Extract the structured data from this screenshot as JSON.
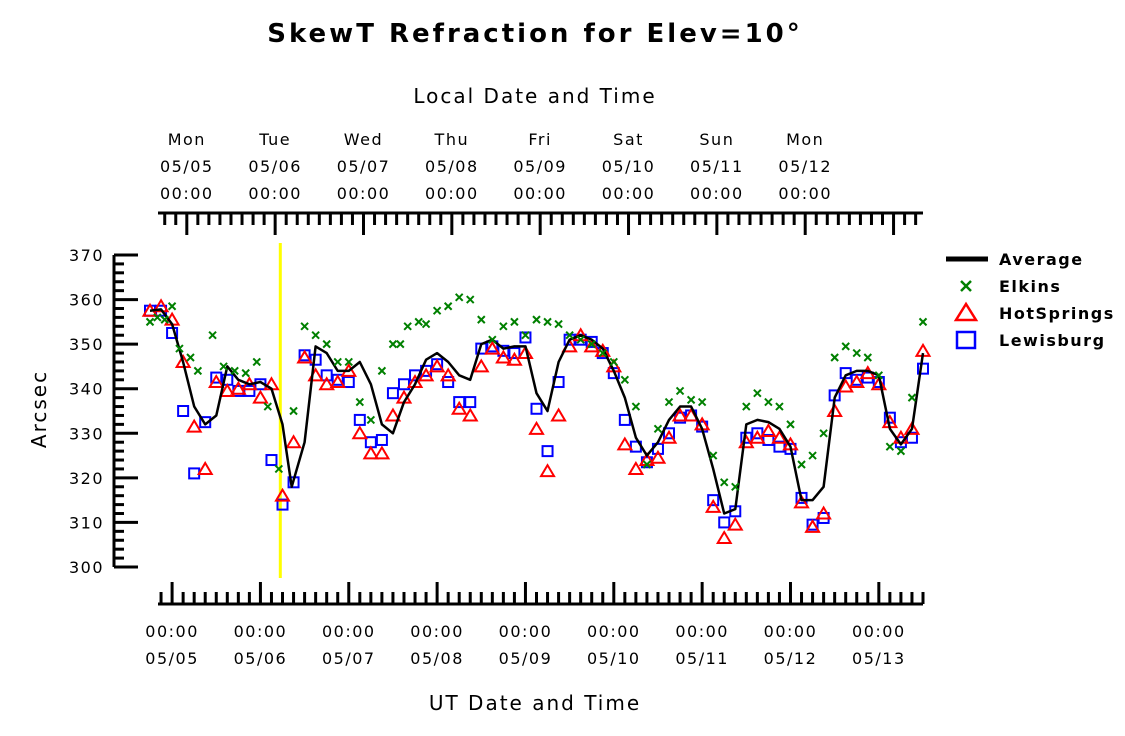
{
  "chart_data": {
    "type": "scatter",
    "title": "SkewT Refraction for Elev=10°",
    "ylabel": "Arcsec",
    "xlabel": "UT Date and Time",
    "top_axis_label": "Local Date and Time",
    "ylim": [
      300,
      370
    ],
    "yticks": [
      300,
      310,
      320,
      330,
      340,
      350,
      360,
      370
    ],
    "x_unit": "hours since 05/04 18:00 UT",
    "xlim": [
      0,
      210
    ],
    "bottom_ticks": [
      {
        "time": "00:00",
        "date": "05/05"
      },
      {
        "time": "00:00",
        "date": "05/06"
      },
      {
        "time": "00:00",
        "date": "05/07"
      },
      {
        "time": "00:00",
        "date": "05/08"
      },
      {
        "time": "00:00",
        "date": "05/09"
      },
      {
        "time": "00:00",
        "date": "05/10"
      },
      {
        "time": "00:00",
        "date": "05/11"
      },
      {
        "time": "00:00",
        "date": "05/12"
      },
      {
        "time": "00:00",
        "date": "05/13"
      }
    ],
    "top_ticks": [
      {
        "day": "Mon",
        "date": "05/05",
        "time": "00:00"
      },
      {
        "day": "Tue",
        "date": "05/06",
        "time": "00:00"
      },
      {
        "day": "Wed",
        "date": "05/07",
        "time": "00:00"
      },
      {
        "day": "Thu",
        "date": "05/08",
        "time": "00:00"
      },
      {
        "day": "Fri",
        "date": "05/09",
        "time": "00:00"
      },
      {
        "day": "Sat",
        "date": "05/10",
        "time": "00:00"
      },
      {
        "day": "Sun",
        "date": "05/11",
        "time": "00:00"
      },
      {
        "day": "Mon",
        "date": "05/12",
        "time": "00:00"
      }
    ],
    "marker_line": {
      "x": 35.4,
      "color": "#ffff00"
    },
    "legend_position": "right",
    "series": [
      {
        "name": "Average",
        "kind": "line",
        "color": "#000000",
        "points": [
          [
            0,
            357.5
          ],
          [
            3,
            357.8
          ],
          [
            6,
            354.5
          ],
          [
            9,
            346
          ],
          [
            12,
            336
          ],
          [
            15,
            332
          ],
          [
            18,
            334
          ],
          [
            21,
            345
          ],
          [
            24,
            342
          ],
          [
            27,
            341
          ],
          [
            30,
            341.5
          ],
          [
            33,
            340
          ],
          [
            36,
            332
          ],
          [
            38.5,
            318
          ],
          [
            42,
            328
          ],
          [
            45,
            349.5
          ],
          [
            48,
            348
          ],
          [
            51,
            344
          ],
          [
            54,
            344
          ],
          [
            57,
            346
          ],
          [
            60,
            341
          ],
          [
            63,
            332
          ],
          [
            66,
            330
          ],
          [
            69,
            337
          ],
          [
            72,
            341
          ],
          [
            75,
            346.5
          ],
          [
            78,
            348
          ],
          [
            81,
            346
          ],
          [
            84,
            343
          ],
          [
            87,
            342
          ],
          [
            90,
            350
          ],
          [
            93,
            351
          ],
          [
            96,
            349
          ],
          [
            99,
            349.5
          ],
          [
            102,
            349.5
          ],
          [
            105,
            339
          ],
          [
            108,
            335
          ],
          [
            111,
            346
          ],
          [
            114,
            351
          ],
          [
            117,
            352
          ],
          [
            120,
            351
          ],
          [
            123,
            349
          ],
          [
            126,
            344
          ],
          [
            129,
            338
          ],
          [
            132,
            329
          ],
          [
            135,
            325
          ],
          [
            138,
            328
          ],
          [
            141,
            333
          ],
          [
            144,
            336
          ],
          [
            147,
            336
          ],
          [
            150,
            331
          ],
          [
            153,
            322
          ],
          [
            156,
            312
          ],
          [
            159,
            313
          ],
          [
            162,
            332
          ],
          [
            165,
            333
          ],
          [
            168,
            332.5
          ],
          [
            171,
            331
          ],
          [
            174,
            327
          ],
          [
            177,
            315
          ],
          [
            180,
            315
          ],
          [
            183,
            318
          ],
          [
            186,
            338
          ],
          [
            189,
            343
          ],
          [
            192,
            344
          ],
          [
            195,
            344
          ],
          [
            198,
            343
          ],
          [
            201,
            331
          ],
          [
            204,
            327.5
          ],
          [
            207,
            331
          ],
          [
            210,
            348
          ]
        ]
      },
      {
        "name": "Elkins",
        "kind": "marker",
        "marker": "x",
        "color": "#008000",
        "points": [
          [
            0,
            355
          ],
          [
            2,
            356
          ],
          [
            4,
            355.5
          ],
          [
            6,
            358.5
          ],
          [
            8,
            349
          ],
          [
            11,
            347
          ],
          [
            13,
            344
          ],
          [
            17,
            352
          ],
          [
            20,
            345
          ],
          [
            23,
            344
          ],
          [
            26,
            343.5
          ],
          [
            29,
            346
          ],
          [
            32,
            336
          ],
          [
            35,
            322
          ],
          [
            39,
            335
          ],
          [
            42,
            354
          ],
          [
            45,
            352
          ],
          [
            48,
            350
          ],
          [
            51,
            346
          ],
          [
            54,
            346
          ],
          [
            57,
            337
          ],
          [
            60,
            333
          ],
          [
            63,
            344
          ],
          [
            66,
            350
          ],
          [
            68,
            350
          ],
          [
            70,
            354
          ],
          [
            73,
            355
          ],
          [
            75,
            354.5
          ],
          [
            78,
            357.5
          ],
          [
            81,
            358.5
          ],
          [
            84,
            360.5
          ],
          [
            87,
            360
          ],
          [
            90,
            355.5
          ],
          [
            93,
            351
          ],
          [
            96,
            354
          ],
          [
            99,
            355
          ],
          [
            102,
            352
          ],
          [
            105,
            355.5
          ],
          [
            108,
            355
          ],
          [
            111,
            354.5
          ],
          [
            114,
            352
          ],
          [
            117,
            351
          ],
          [
            120,
            350
          ],
          [
            123,
            348
          ],
          [
            126,
            346
          ],
          [
            129,
            342
          ],
          [
            132,
            336
          ],
          [
            135,
            323
          ],
          [
            138,
            331
          ],
          [
            141,
            337
          ],
          [
            144,
            339.5
          ],
          [
            147,
            337.5
          ],
          [
            150,
            337
          ],
          [
            153,
            325
          ],
          [
            156,
            319
          ],
          [
            159,
            318
          ],
          [
            162,
            336
          ],
          [
            165,
            339
          ],
          [
            168,
            337
          ],
          [
            171,
            336
          ],
          [
            174,
            332
          ],
          [
            177,
            323
          ],
          [
            180,
            325
          ],
          [
            183,
            330
          ],
          [
            186,
            347
          ],
          [
            189,
            349.5
          ],
          [
            192,
            348
          ],
          [
            195,
            347
          ],
          [
            198,
            343
          ],
          [
            201,
            327
          ],
          [
            204,
            326
          ],
          [
            207,
            338
          ],
          [
            210,
            355
          ]
        ]
      },
      {
        "name": "HotSprings",
        "kind": "marker",
        "marker": "triangle",
        "color": "#ff0000",
        "points": [
          [
            0,
            357.5
          ],
          [
            3,
            358.5
          ],
          [
            6,
            355.5
          ],
          [
            9,
            346
          ],
          [
            12,
            331.5
          ],
          [
            15,
            322
          ],
          [
            18,
            341.5
          ],
          [
            21,
            339.5
          ],
          [
            24,
            340
          ],
          [
            27,
            341
          ],
          [
            30,
            338
          ],
          [
            33,
            341
          ],
          [
            36,
            316
          ],
          [
            39,
            328
          ],
          [
            42,
            347
          ],
          [
            45,
            343
          ],
          [
            48,
            341
          ],
          [
            51,
            341.5
          ],
          [
            54,
            344
          ],
          [
            57,
            330
          ],
          [
            60,
            325.5
          ],
          [
            63,
            325.5
          ],
          [
            66,
            334
          ],
          [
            69,
            338
          ],
          [
            72,
            341.5
          ],
          [
            75,
            343
          ],
          [
            78,
            345
          ],
          [
            81,
            343
          ],
          [
            84,
            335.5
          ],
          [
            87,
            334
          ],
          [
            90,
            345
          ],
          [
            93,
            349
          ],
          [
            96,
            347
          ],
          [
            99,
            346.5
          ],
          [
            102,
            348
          ],
          [
            105,
            331
          ],
          [
            108,
            321.5
          ],
          [
            111,
            334
          ],
          [
            114,
            349.5
          ],
          [
            117,
            352
          ],
          [
            120,
            349.5
          ],
          [
            123,
            348.5
          ],
          [
            126,
            345
          ],
          [
            129,
            327.5
          ],
          [
            132,
            322
          ],
          [
            135,
            324
          ],
          [
            138,
            324.5
          ],
          [
            141,
            329
          ],
          [
            144,
            334
          ],
          [
            147,
            334
          ],
          [
            150,
            332
          ],
          [
            153,
            313.5
          ],
          [
            156,
            306.5
          ],
          [
            159,
            309.5
          ],
          [
            162,
            328
          ],
          [
            165,
            329
          ],
          [
            168,
            330.5
          ],
          [
            171,
            329
          ],
          [
            174,
            327.5
          ],
          [
            177,
            314.5
          ],
          [
            180,
            309
          ],
          [
            183,
            312
          ],
          [
            186,
            335
          ],
          [
            189,
            340.5
          ],
          [
            192,
            341.5
          ],
          [
            195,
            343.5
          ],
          [
            198,
            341
          ],
          [
            201,
            332.5
          ],
          [
            204,
            329
          ],
          [
            207,
            331
          ],
          [
            210,
            348.5
          ]
        ]
      },
      {
        "name": "Lewisburg",
        "kind": "marker",
        "marker": "square",
        "color": "#0000ff",
        "points": [
          [
            0,
            357.5
          ],
          [
            3,
            357.5
          ],
          [
            6,
            352.5
          ],
          [
            9,
            335
          ],
          [
            12,
            321
          ],
          [
            15,
            332.5
          ],
          [
            18,
            342.5
          ],
          [
            21,
            342
          ],
          [
            24,
            339.5
          ],
          [
            27,
            339.5
          ],
          [
            30,
            341
          ],
          [
            33,
            324
          ],
          [
            36,
            314
          ],
          [
            39,
            319
          ],
          [
            42,
            347.5
          ],
          [
            45,
            346.5
          ],
          [
            48,
            343
          ],
          [
            51,
            342
          ],
          [
            54,
            341.5
          ],
          [
            57,
            333
          ],
          [
            60,
            328
          ],
          [
            63,
            328.5
          ],
          [
            66,
            339
          ],
          [
            69,
            341
          ],
          [
            72,
            343
          ],
          [
            75,
            344
          ],
          [
            78,
            345.5
          ],
          [
            81,
            341.5
          ],
          [
            84,
            337
          ],
          [
            87,
            337
          ],
          [
            90,
            349
          ],
          [
            93,
            349.5
          ],
          [
            96,
            348.5
          ],
          [
            99,
            348
          ],
          [
            102,
            351.5
          ],
          [
            105,
            335.5
          ],
          [
            108,
            326
          ],
          [
            111,
            341.5
          ],
          [
            114,
            351
          ],
          [
            117,
            351
          ],
          [
            120,
            350.5
          ],
          [
            123,
            348
          ],
          [
            126,
            343.5
          ],
          [
            129,
            333
          ],
          [
            132,
            327
          ],
          [
            135,
            323.5
          ],
          [
            138,
            326.5
          ],
          [
            141,
            330
          ],
          [
            144,
            333.5
          ],
          [
            147,
            334
          ],
          [
            150,
            331.5
          ],
          [
            153,
            315
          ],
          [
            156,
            310
          ],
          [
            159,
            312.5
          ],
          [
            162,
            329
          ],
          [
            165,
            330
          ],
          [
            168,
            328.5
          ],
          [
            171,
            327
          ],
          [
            174,
            326.5
          ],
          [
            177,
            315.5
          ],
          [
            180,
            309.5
          ],
          [
            183,
            311
          ],
          [
            186,
            338.5
          ],
          [
            189,
            343.5
          ],
          [
            192,
            342
          ],
          [
            195,
            342.5
          ],
          [
            198,
            341.5
          ],
          [
            201,
            333.5
          ],
          [
            204,
            328
          ],
          [
            207,
            329
          ],
          [
            210,
            344.5
          ]
        ]
      }
    ]
  }
}
